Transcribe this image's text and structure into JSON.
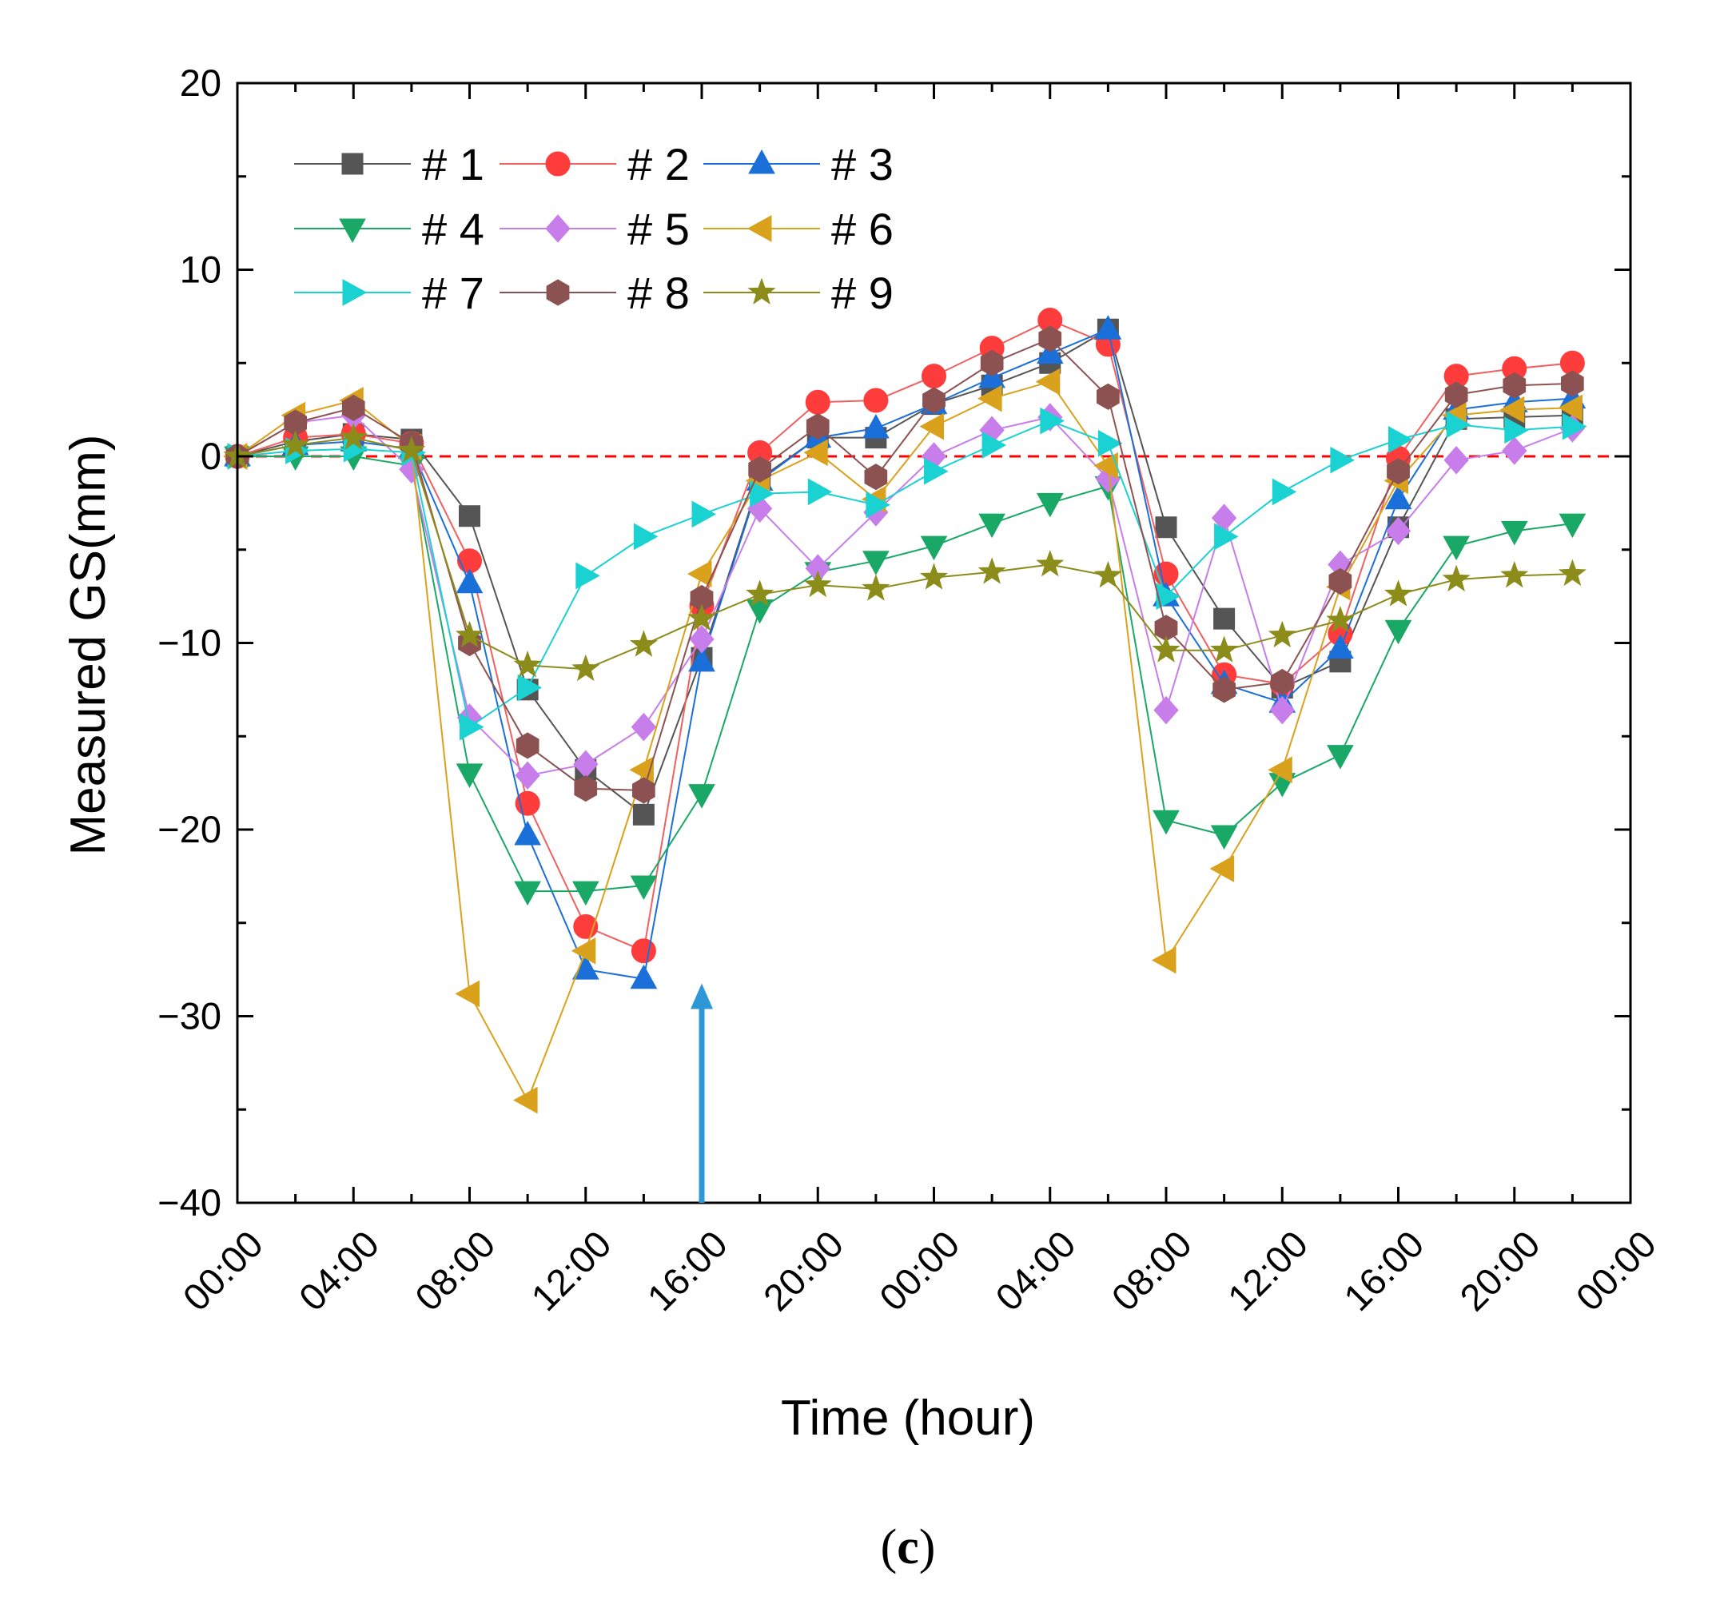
{
  "chart_data": {
    "type": "line",
    "ylabel": "Measured GS(mm)",
    "xlabel": "Time (hour)",
    "caption_open": "(",
    "caption_letter": "c",
    "caption_close": ")",
    "ylim": [
      -40,
      20
    ],
    "yticks": [
      20,
      10,
      0,
      -10,
      -20,
      -30,
      -40
    ],
    "ytick_labels": [
      "20",
      "10",
      "0",
      "−10",
      "−20",
      "−30",
      "−40"
    ],
    "xlim_hours": [
      0,
      48
    ],
    "xtick_hours": [
      0,
      4,
      8,
      12,
      16,
      20,
      24,
      28,
      32,
      36,
      40,
      44,
      48
    ],
    "xtick_labels": [
      "00:00",
      "04:00",
      "08:00",
      "12:00",
      "16:00",
      "20:00",
      "00:00",
      "04:00",
      "08:00",
      "12:00",
      "16:00",
      "20:00",
      "00:00"
    ],
    "reference_line": {
      "y": 0,
      "color": "#ff0000",
      "style": "dashed"
    },
    "arrow": {
      "x_hours": 16,
      "from_y": -40,
      "to_y": -28.5,
      "color": "#2e98d6"
    },
    "x_hours": [
      0,
      2,
      4,
      6,
      8,
      10,
      12,
      14,
      16,
      18,
      20,
      22,
      24,
      26,
      28,
      30,
      32,
      34,
      36,
      38,
      40,
      42,
      44,
      46
    ],
    "legend_location": "upper-left",
    "series": [
      {
        "name": "# 1",
        "color": "#555555",
        "line": "#555555",
        "marker": "square",
        "values": [
          0,
          0.8,
          1.2,
          0.9,
          -3.2,
          -12.5,
          -16.8,
          -19.2,
          -10.8,
          -1.2,
          1,
          1,
          2.8,
          3.8,
          5,
          6.8,
          -3.8,
          -8.7,
          -12.4,
          -11,
          -3.8,
          2,
          2.1,
          2.2
        ]
      },
      {
        "name": "# 2",
        "color": "#ff3c3c",
        "line": "#f06060",
        "marker": "circle",
        "values": [
          0,
          1,
          1.2,
          0.7,
          -5.6,
          -18.6,
          -25.2,
          -26.5,
          -8,
          0.2,
          2.9,
          3,
          4.3,
          5.8,
          7.3,
          6,
          -6.3,
          -11.7,
          -12.2,
          -9.5,
          -0.1,
          4.3,
          4.7,
          5
        ]
      },
      {
        "name": "# 3",
        "color": "#1a6fd8",
        "line": "#1a6fd8",
        "marker": "triangle-up",
        "values": [
          0,
          0.6,
          0.8,
          0.4,
          -6.8,
          -20.3,
          -27.5,
          -28,
          -11,
          -1.3,
          1,
          1.5,
          2.8,
          4.2,
          5.5,
          6.8,
          -7.5,
          -12.2,
          -13.2,
          -10.3,
          -2.3,
          2.5,
          2.9,
          3.1
        ]
      },
      {
        "name": "# 4",
        "color": "#1aa866",
        "line": "#1aa866",
        "marker": "triangle-down",
        "values": [
          0,
          0,
          0,
          -0.5,
          -17,
          -23.3,
          -23.3,
          -23,
          -18.1,
          -8.2,
          -6.2,
          -5.6,
          -4.8,
          -3.6,
          -2.5,
          -1.6,
          -19.5,
          -20.3,
          -17.5,
          -16,
          -9.3,
          -4.8,
          -4,
          -3.6
        ]
      },
      {
        "name": "# 5",
        "color": "#c77dea",
        "line": "#c77dea",
        "marker": "diamond",
        "values": [
          0,
          1.8,
          2.2,
          -0.7,
          -14,
          -17.1,
          -16.5,
          -14.5,
          -9.8,
          -2.8,
          -6,
          -3,
          0,
          1.4,
          2.1,
          -1.2,
          -13.6,
          -3.3,
          -13.6,
          -5.8,
          -4,
          -0.2,
          0.3,
          1.5
        ]
      },
      {
        "name": "# 6",
        "color": "#daa21c",
        "line": "#daa21c",
        "marker": "triangle-left",
        "values": [
          0,
          2.2,
          3,
          0.5,
          -28.8,
          -34.5,
          -26.5,
          -16.8,
          -6.3,
          -1.3,
          0.2,
          -2.3,
          1.6,
          3.1,
          4,
          -0.5,
          -27,
          -22.1,
          -16.8,
          -7,
          -1.3,
          2.2,
          2.5,
          2.6
        ]
      },
      {
        "name": "# 7",
        "color": "#1ad2d2",
        "line": "#1ad2d2",
        "marker": "triangle-right",
        "values": [
          0,
          0.3,
          0.4,
          0.2,
          -14.5,
          -12.4,
          -6.4,
          -4.3,
          -3.1,
          -2,
          -1.9,
          -2.6,
          -0.8,
          0.6,
          1.9,
          0.7,
          -7.5,
          -4.3,
          -1.9,
          -0.2,
          0.9,
          1.7,
          1.4,
          1.6
        ]
      },
      {
        "name": "# 8",
        "color": "#8c5252",
        "line": "#8c5252",
        "marker": "hexagon",
        "values": [
          0,
          1.8,
          2.6,
          0.7,
          -10,
          -15.5,
          -17.8,
          -17.9,
          -7.6,
          -0.7,
          1.6,
          -1.1,
          3,
          5,
          6.3,
          3.2,
          -9.2,
          -12.5,
          -12.1,
          -6.7,
          -0.8,
          3.3,
          3.8,
          3.9
        ]
      },
      {
        "name": "# 9",
        "color": "#8c8c1a",
        "line": "#8c8c1a",
        "marker": "star",
        "values": [
          0,
          0.6,
          1,
          0.3,
          -9.6,
          -11.2,
          -11.4,
          -10.1,
          -8.7,
          -7.4,
          -6.9,
          -7.1,
          -6.5,
          -6.2,
          -5.8,
          -6.4,
          -10.4,
          -10.4,
          -9.6,
          -8.8,
          -7.4,
          -6.6,
          -6.4,
          -6.3
        ]
      }
    ]
  }
}
